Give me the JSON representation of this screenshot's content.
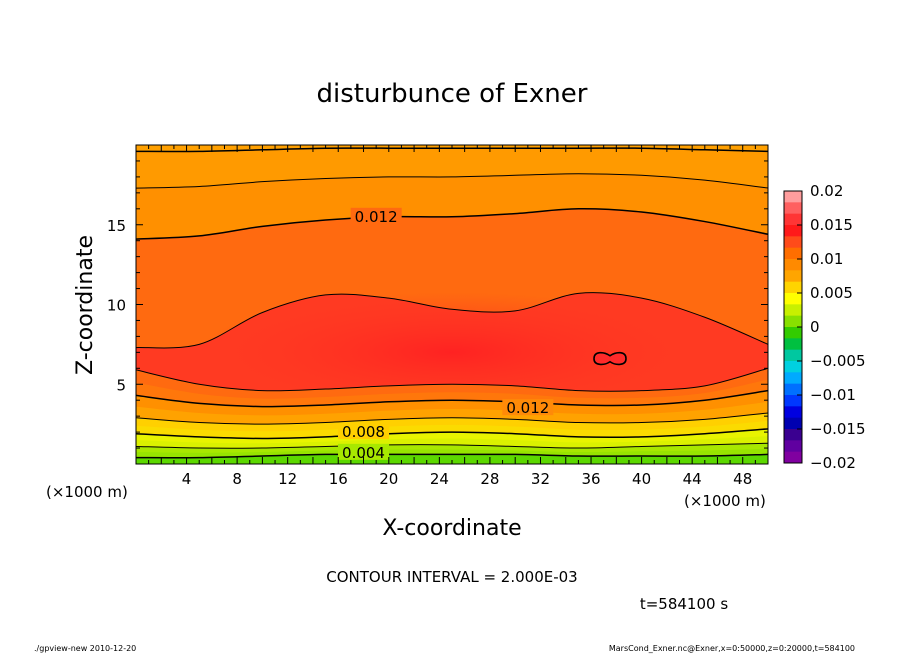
{
  "chart_data": {
    "type": "contour",
    "title": "disturbunce of Exner",
    "xlabel": "X-coordinate",
    "ylabel": "Z-coordinate",
    "x_unit": "(×1000 m)",
    "y_unit": "(×1000 m)",
    "xlim": [
      0,
      50
    ],
    "ylim": [
      0,
      20
    ],
    "x_ticks": [
      4,
      8,
      12,
      16,
      20,
      24,
      28,
      32,
      36,
      40,
      44,
      48
    ],
    "y_ticks": [
      5,
      10,
      15
    ],
    "contour_interval_text": "CONTOUR INTERVAL = 2.000E-03",
    "time_text": "t=584100 s",
    "contour_labels": [
      {
        "text": "0.012",
        "x": 19.0,
        "z": 15.5
      },
      {
        "text": "0.012",
        "x": 31.0,
        "z": 3.5
      },
      {
        "text": "0.008",
        "x": 18.0,
        "z": 2.0
      },
      {
        "text": "0.004",
        "x": 18.0,
        "z": 0.7
      }
    ],
    "levels": [
      {
        "value": 0.004,
        "z": [
          0.4,
          0.4,
          0.5,
          0.6,
          0.6,
          0.6,
          0.6,
          0.5,
          0.5,
          0.5,
          0.6
        ]
      },
      {
        "value": 0.006,
        "z": [
          1.1,
          1.0,
          1.0,
          1.1,
          1.2,
          1.2,
          1.1,
          1.0,
          1.1,
          1.2,
          1.3
        ]
      },
      {
        "value": 0.008,
        "z": [
          1.9,
          1.7,
          1.6,
          1.7,
          1.9,
          2.0,
          1.9,
          1.7,
          1.7,
          1.9,
          2.2
        ]
      },
      {
        "value": 0.01,
        "z": [
          2.9,
          2.6,
          2.5,
          2.6,
          2.8,
          2.9,
          2.8,
          2.6,
          2.6,
          2.8,
          3.2
        ]
      },
      {
        "value": 0.012,
        "z": [
          4.3,
          3.8,
          3.6,
          3.7,
          3.9,
          4.0,
          3.9,
          3.7,
          3.7,
          4.0,
          4.6
        ]
      },
      {
        "value": 0.014,
        "z": [
          5.9,
          5.0,
          4.6,
          4.7,
          4.9,
          5.0,
          4.9,
          4.6,
          4.6,
          4.9,
          6.0
        ]
      },
      {
        "value": 0.014,
        "z": [
          7.3,
          7.5,
          9.5,
          10.6,
          10.4,
          9.7,
          9.6,
          10.7,
          10.4,
          9.2,
          7.5
        ]
      },
      {
        "value": 0.012,
        "z": [
          14.1,
          14.3,
          14.9,
          15.3,
          15.5,
          15.5,
          15.7,
          16.0,
          15.8,
          15.2,
          14.4
        ]
      },
      {
        "value": 0.01,
        "z": [
          17.3,
          17.4,
          17.7,
          17.9,
          18.0,
          18.0,
          18.1,
          18.2,
          18.1,
          17.8,
          17.3
        ]
      },
      {
        "value": 0.008,
        "z": [
          19.6,
          19.6,
          19.7,
          19.8,
          19.8,
          19.8,
          19.8,
          19.8,
          19.8,
          19.7,
          19.6
        ]
      }
    ],
    "closed_contour": {
      "value": 0.016,
      "center_x": 37.5,
      "center_z": 6.6
    },
    "colorbar": {
      "labels": [
        "0.02",
        "0.015",
        "0.01",
        "0.005",
        "0",
        "−0.005",
        "−0.01",
        "−0.015",
        "−0.02"
      ],
      "colors": [
        "#ff9d9d",
        "#ff6060",
        "#ff3535",
        "#ff1a1a",
        "#ff4b1a",
        "#ff6e00",
        "#ff8a00",
        "#ffa500",
        "#ffd400",
        "#ffff00",
        "#c8f000",
        "#88e000",
        "#33cc00",
        "#00c040",
        "#00c8a0",
        "#00d0e0",
        "#00aaff",
        "#0070ff",
        "#0038ff",
        "#0000e0",
        "#0000b0",
        "#3a0090",
        "#6000a0",
        "#8000a0"
      ]
    },
    "fill_colors": {
      "band_0_004": "#5cd800",
      "band_004_006": "#a8e800",
      "band_006_008": "#e8f400",
      "band_008_010": "#ffd000",
      "band_010_012": "#ff9000",
      "band_012_014": "#ff6a10",
      "band_014_016": "#ff3a22",
      "band_016_plus": "#ff2828",
      "band_top": "#ffa000"
    }
  },
  "footer": {
    "left": "./gpview-new   2010-12-20",
    "right": "MarsCond_Exner.nc@Exner,x=0:50000,z=0:20000,t=584100"
  }
}
